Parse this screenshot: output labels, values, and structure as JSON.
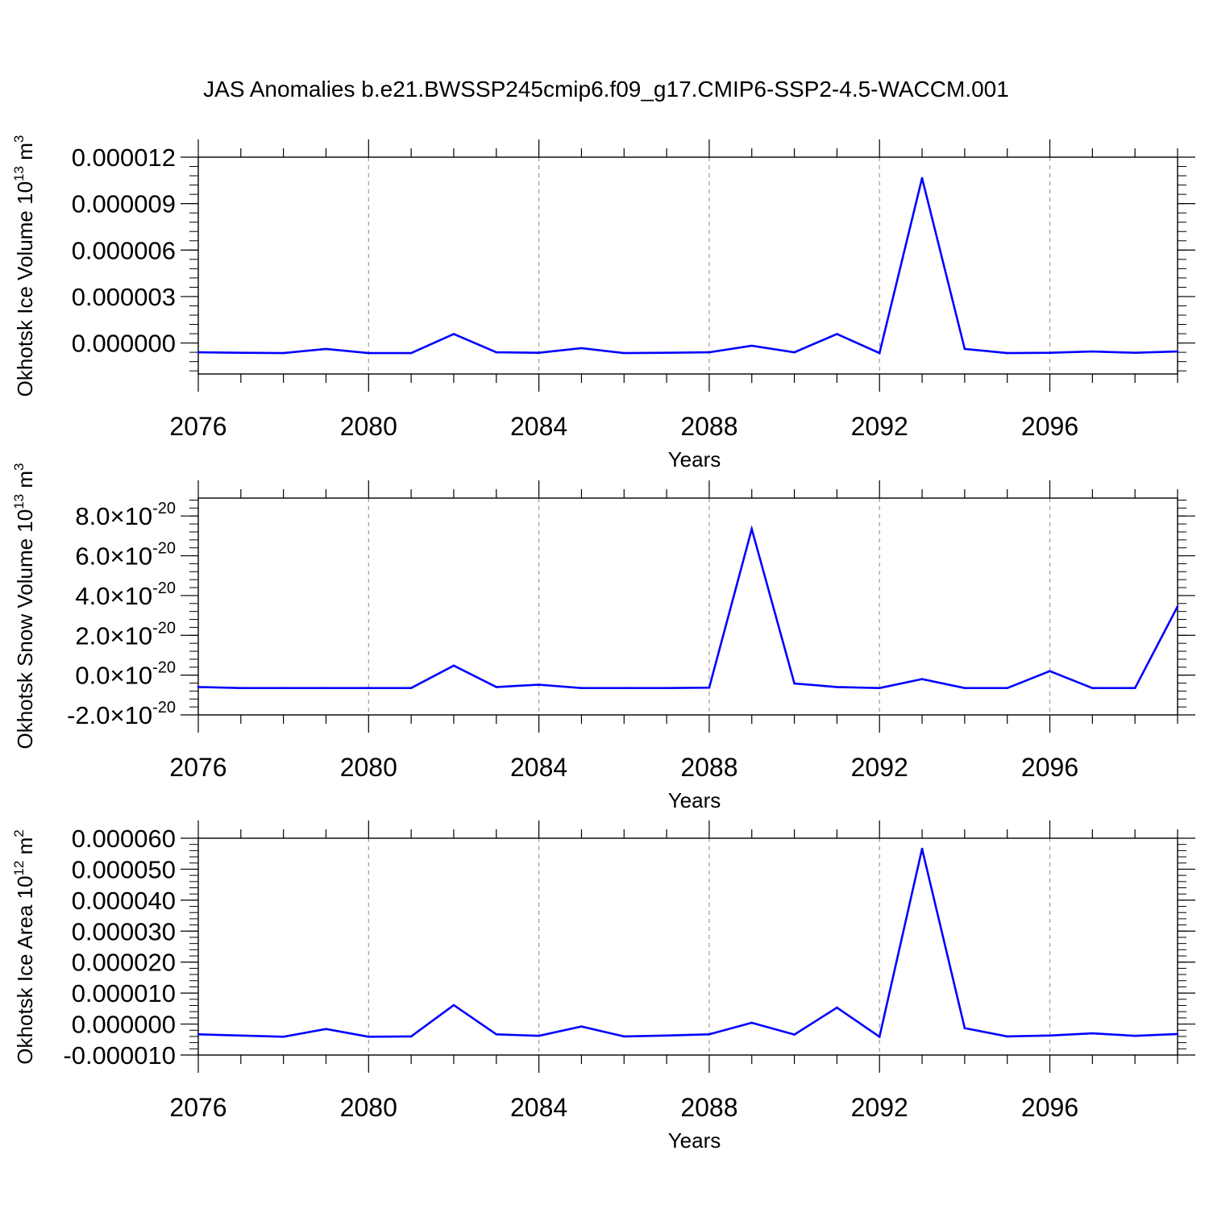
{
  "title": "JAS Anomalies b.e21.BWSSP245cmip6.f09_g17.CMIP6-SSP2-4.5-WACCM.001",
  "line_color": "#0000ff",
  "chart_data": [
    {
      "type": "line",
      "title": "",
      "xlabel": "Years",
      "ylabel": "Okhotsk Ice Volume 10",
      "ylabel_exp": "13",
      "ylabel_unit": " m",
      "ylabel_unit_exp": "3",
      "xlim": [
        2076,
        2099
      ],
      "ylim": [
        -2e-06,
        1.2e-05
      ],
      "grid": "vertical-dashed",
      "x_ticks": [
        2076,
        2080,
        2084,
        2088,
        2092,
        2096
      ],
      "x_tick_labels": [
        "2076",
        "2080",
        "2084",
        "2088",
        "2092",
        "2096"
      ],
      "y_ticks": [
        0,
        3e-06,
        6e-06,
        9e-06,
        1.2e-05
      ],
      "y_tick_labels": [
        "0.000000",
        "0.000003",
        "0.000006",
        "0.000009",
        "0.000012"
      ],
      "y_tick_exps": [],
      "y_minor_step": 6e-07,
      "x": [
        2076,
        2077,
        2078,
        2079,
        2080,
        2081,
        2082,
        2083,
        2084,
        2085,
        2086,
        2087,
        2088,
        2089,
        2090,
        2091,
        2092,
        2093,
        2094,
        2095,
        2096,
        2097,
        2098,
        2099
      ],
      "series": [
        {
          "values": [
            -6e-07,
            -6.3e-07,
            -6.5e-07,
            -3.8e-07,
            -6.5e-07,
            -6.5e-07,
            5.8e-07,
            -6e-07,
            -6.3e-07,
            -3.3e-07,
            -6.5e-07,
            -6.3e-07,
            -6e-07,
            -1.8e-07,
            -6e-07,
            5.8e-07,
            -6.5e-07,
            1.065e-05,
            -3.8e-07,
            -6.5e-07,
            -6.3e-07,
            -5.5e-07,
            -6.3e-07,
            -5.5e-07
          ]
        }
      ]
    },
    {
      "type": "line",
      "title": "",
      "xlabel": "Years",
      "ylabel": "Okhotsk Snow Volume 10",
      "ylabel_exp": "13",
      "ylabel_unit": " m",
      "ylabel_unit_exp": "3",
      "xlim": [
        2076,
        2099
      ],
      "ylim": [
        -2e-20,
        8.9e-20
      ],
      "grid": "vertical-dashed",
      "x_ticks": [
        2076,
        2080,
        2084,
        2088,
        2092,
        2096
      ],
      "x_tick_labels": [
        "2076",
        "2080",
        "2084",
        "2088",
        "2092",
        "2096"
      ],
      "y_ticks": [
        -2e-20,
        0,
        2e-20,
        4e-20,
        6e-20,
        8e-20
      ],
      "y_tick_labels": [
        "-2.0×10",
        "0.0×10",
        "2.0×10",
        "4.0×10",
        "6.0×10",
        "8.0×10"
      ],
      "y_tick_exps": [
        "-20",
        "-20",
        "-20",
        "-20",
        "-20",
        "-20"
      ],
      "y_minor_step": 4e-21,
      "x": [
        2076,
        2077,
        2078,
        2079,
        2080,
        2081,
        2082,
        2083,
        2084,
        2085,
        2086,
        2087,
        2088,
        2089,
        2090,
        2091,
        2092,
        2093,
        2094,
        2095,
        2096,
        2097,
        2098,
        2099
      ],
      "series": [
        {
          "values": [
            -6e-21,
            -6.5e-21,
            -6.5e-21,
            -6.5e-21,
            -6.5e-21,
            -6.5e-21,
            4.8e-21,
            -6e-21,
            -4.8e-21,
            -6.5e-21,
            -6.5e-21,
            -6.5e-21,
            -6.3e-21,
            7.35e-20,
            -4.2e-21,
            -6e-21,
            -6.5e-21,
            -2e-21,
            -6.5e-21,
            -6.5e-21,
            2e-21,
            -6.5e-21,
            -6.5e-21,
            3.45e-20
          ]
        }
      ]
    },
    {
      "type": "line",
      "title": "",
      "xlabel": "Years",
      "ylabel": "Okhotsk Ice Area 10",
      "ylabel_exp": "12",
      "ylabel_unit": " m",
      "ylabel_unit_exp": "2",
      "xlim": [
        2076,
        2099
      ],
      "ylim": [
        -1e-05,
        6e-05
      ],
      "grid": "vertical-dashed",
      "x_ticks": [
        2076,
        2080,
        2084,
        2088,
        2092,
        2096
      ],
      "x_tick_labels": [
        "2076",
        "2080",
        "2084",
        "2088",
        "2092",
        "2096"
      ],
      "y_ticks": [
        -1e-05,
        0,
        1e-05,
        2e-05,
        3e-05,
        4e-05,
        5e-05,
        6e-05
      ],
      "y_tick_labels": [
        "-0.000010",
        "0.000000",
        "0.000010",
        "0.000020",
        "0.000030",
        "0.000040",
        "0.000050",
        "0.000060"
      ],
      "y_tick_exps": [],
      "y_minor_step": 2e-06,
      "x": [
        2076,
        2077,
        2078,
        2079,
        2080,
        2081,
        2082,
        2083,
        2084,
        2085,
        2086,
        2087,
        2088,
        2089,
        2090,
        2091,
        2092,
        2093,
        2094,
        2095,
        2096,
        2097,
        2098,
        2099
      ],
      "series": [
        {
          "values": [
            -3.3e-06,
            -3.7e-06,
            -4.1e-06,
            -1.6e-06,
            -4.1e-06,
            -4e-06,
            6.1e-06,
            -3.3e-06,
            -3.8e-06,
            -8e-07,
            -4e-06,
            -3.7e-06,
            -3.3e-06,
            4e-07,
            -3.4e-06,
            5.3e-06,
            -4.1e-06,
            5.66e-05,
            -1.3e-06,
            -4e-06,
            -3.7e-06,
            -3e-06,
            -3.8e-06,
            -3.2e-06
          ]
        }
      ]
    }
  ]
}
